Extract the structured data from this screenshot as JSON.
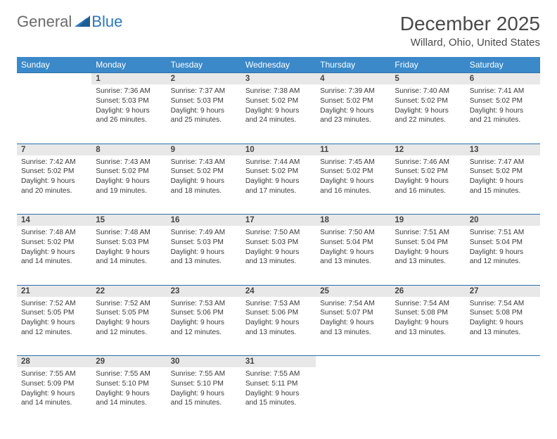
{
  "logo": {
    "text1": "General",
    "text2": "Blue",
    "mark_color": "#2f77bb"
  },
  "title": "December 2025",
  "location": "Willard, Ohio, United States",
  "header_bg": "#3b89c9",
  "daynum_bg": "#e8e8e8",
  "border_color": "#2f6fa8",
  "weekdays": [
    "Sunday",
    "Monday",
    "Tuesday",
    "Wednesday",
    "Thursday",
    "Friday",
    "Saturday"
  ],
  "weeks": [
    [
      null,
      {
        "n": "1",
        "sr": "7:36 AM",
        "ss": "5:03 PM",
        "dl": "9 hours and 26 minutes."
      },
      {
        "n": "2",
        "sr": "7:37 AM",
        "ss": "5:03 PM",
        "dl": "9 hours and 25 minutes."
      },
      {
        "n": "3",
        "sr": "7:38 AM",
        "ss": "5:02 PM",
        "dl": "9 hours and 24 minutes."
      },
      {
        "n": "4",
        "sr": "7:39 AM",
        "ss": "5:02 PM",
        "dl": "9 hours and 23 minutes."
      },
      {
        "n": "5",
        "sr": "7:40 AM",
        "ss": "5:02 PM",
        "dl": "9 hours and 22 minutes."
      },
      {
        "n": "6",
        "sr": "7:41 AM",
        "ss": "5:02 PM",
        "dl": "9 hours and 21 minutes."
      }
    ],
    [
      {
        "n": "7",
        "sr": "7:42 AM",
        "ss": "5:02 PM",
        "dl": "9 hours and 20 minutes."
      },
      {
        "n": "8",
        "sr": "7:43 AM",
        "ss": "5:02 PM",
        "dl": "9 hours and 19 minutes."
      },
      {
        "n": "9",
        "sr": "7:43 AM",
        "ss": "5:02 PM",
        "dl": "9 hours and 18 minutes."
      },
      {
        "n": "10",
        "sr": "7:44 AM",
        "ss": "5:02 PM",
        "dl": "9 hours and 17 minutes."
      },
      {
        "n": "11",
        "sr": "7:45 AM",
        "ss": "5:02 PM",
        "dl": "9 hours and 16 minutes."
      },
      {
        "n": "12",
        "sr": "7:46 AM",
        "ss": "5:02 PM",
        "dl": "9 hours and 16 minutes."
      },
      {
        "n": "13",
        "sr": "7:47 AM",
        "ss": "5:02 PM",
        "dl": "9 hours and 15 minutes."
      }
    ],
    [
      {
        "n": "14",
        "sr": "7:48 AM",
        "ss": "5:02 PM",
        "dl": "9 hours and 14 minutes."
      },
      {
        "n": "15",
        "sr": "7:48 AM",
        "ss": "5:03 PM",
        "dl": "9 hours and 14 minutes."
      },
      {
        "n": "16",
        "sr": "7:49 AM",
        "ss": "5:03 PM",
        "dl": "9 hours and 13 minutes."
      },
      {
        "n": "17",
        "sr": "7:50 AM",
        "ss": "5:03 PM",
        "dl": "9 hours and 13 minutes."
      },
      {
        "n": "18",
        "sr": "7:50 AM",
        "ss": "5:04 PM",
        "dl": "9 hours and 13 minutes."
      },
      {
        "n": "19",
        "sr": "7:51 AM",
        "ss": "5:04 PM",
        "dl": "9 hours and 13 minutes."
      },
      {
        "n": "20",
        "sr": "7:51 AM",
        "ss": "5:04 PM",
        "dl": "9 hours and 12 minutes."
      }
    ],
    [
      {
        "n": "21",
        "sr": "7:52 AM",
        "ss": "5:05 PM",
        "dl": "9 hours and 12 minutes."
      },
      {
        "n": "22",
        "sr": "7:52 AM",
        "ss": "5:05 PM",
        "dl": "9 hours and 12 minutes."
      },
      {
        "n": "23",
        "sr": "7:53 AM",
        "ss": "5:06 PM",
        "dl": "9 hours and 12 minutes."
      },
      {
        "n": "24",
        "sr": "7:53 AM",
        "ss": "5:06 PM",
        "dl": "9 hours and 13 minutes."
      },
      {
        "n": "25",
        "sr": "7:54 AM",
        "ss": "5:07 PM",
        "dl": "9 hours and 13 minutes."
      },
      {
        "n": "26",
        "sr": "7:54 AM",
        "ss": "5:08 PM",
        "dl": "9 hours and 13 minutes."
      },
      {
        "n": "27",
        "sr": "7:54 AM",
        "ss": "5:08 PM",
        "dl": "9 hours and 13 minutes."
      }
    ],
    [
      {
        "n": "28",
        "sr": "7:55 AM",
        "ss": "5:09 PM",
        "dl": "9 hours and 14 minutes."
      },
      {
        "n": "29",
        "sr": "7:55 AM",
        "ss": "5:10 PM",
        "dl": "9 hours and 14 minutes."
      },
      {
        "n": "30",
        "sr": "7:55 AM",
        "ss": "5:10 PM",
        "dl": "9 hours and 15 minutes."
      },
      {
        "n": "31",
        "sr": "7:55 AM",
        "ss": "5:11 PM",
        "dl": "9 hours and 15 minutes."
      },
      null,
      null,
      null
    ]
  ]
}
